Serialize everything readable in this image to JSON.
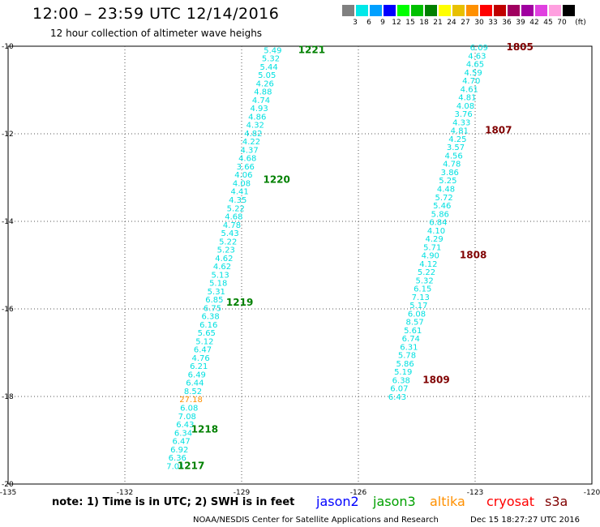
{
  "header": {
    "title": "12:00 – 23:59 UTC 12/14/2016",
    "subtitle": "12 hour collection of altimeter wave heighs"
  },
  "color_scale": {
    "unit": "(ft)",
    "bins": [
      {
        "label": "3",
        "color": "#808080"
      },
      {
        "label": "6",
        "color": "#00e8e8"
      },
      {
        "label": "9",
        "color": "#00a0ff"
      },
      {
        "label": "12",
        "color": "#0000ff"
      },
      {
        "label": "15",
        "color": "#00ff00"
      },
      {
        "label": "18",
        "color": "#00c000"
      },
      {
        "label": "21",
        "color": "#008000"
      },
      {
        "label": "24",
        "color": "#ffff00"
      },
      {
        "label": "27",
        "color": "#e8c000"
      },
      {
        "label": "30",
        "color": "#ff9000"
      },
      {
        "label": "33",
        "color": "#ff0000"
      },
      {
        "label": "36",
        "color": "#c00000"
      },
      {
        "label": "39",
        "color": "#a00060"
      },
      {
        "label": "42",
        "color": "#a000a0"
      },
      {
        "label": "45",
        "color": "#e040e0"
      },
      {
        "label": "70",
        "color": "#ffa0e0"
      },
      {
        "label": "",
        "color": "#000000"
      }
    ]
  },
  "axes": {
    "lon_ticks": [
      "-135",
      "-132",
      "-129",
      "-126",
      "-123",
      "-120"
    ],
    "lat_ticks": [
      "-10",
      "-12",
      "-14",
      "-16",
      "-18",
      "-20"
    ]
  },
  "passes": [
    {
      "sat_color": "#00e0e0",
      "label_color": "#008000",
      "obs": [
        {
          "lon": -128.2,
          "lat": -10.08,
          "v": "5.49"
        },
        {
          "lon": -128.25,
          "lat": -10.27,
          "v": "5.32"
        },
        {
          "lon": -128.3,
          "lat": -10.46,
          "v": "5.44"
        },
        {
          "lon": -128.35,
          "lat": -10.65,
          "v": "5.05"
        },
        {
          "lon": -128.4,
          "lat": -10.84,
          "v": "4.26"
        },
        {
          "lon": -128.45,
          "lat": -11.03,
          "v": "4.88"
        },
        {
          "lon": -128.5,
          "lat": -11.22,
          "v": "4.74"
        },
        {
          "lon": -128.55,
          "lat": -11.41,
          "v": "4.93"
        },
        {
          "lon": -128.6,
          "lat": -11.6,
          "v": "4.86"
        },
        {
          "lon": -128.65,
          "lat": -11.79,
          "v": "4.32"
        },
        {
          "lon": -128.7,
          "lat": -11.98,
          "v": "4.82"
        },
        {
          "lon": -128.75,
          "lat": -12.17,
          "v": "4.22"
        },
        {
          "lon": -128.8,
          "lat": -12.36,
          "v": "4.37"
        },
        {
          "lon": -128.85,
          "lat": -12.55,
          "v": "4.68"
        },
        {
          "lon": -128.9,
          "lat": -12.74,
          "v": "3.66"
        },
        {
          "lon": -128.95,
          "lat": -12.93,
          "v": "4.06"
        },
        {
          "lon": -129.0,
          "lat": -13.12,
          "v": "4.08"
        },
        {
          "lon": -129.05,
          "lat": -13.31,
          "v": "4.41"
        },
        {
          "lon": -129.1,
          "lat": -13.5,
          "v": "4.35"
        },
        {
          "lon": -129.15,
          "lat": -13.69,
          "v": "5.22"
        },
        {
          "lon": -129.2,
          "lat": -13.88,
          "v": "4.68"
        },
        {
          "lon": -129.25,
          "lat": -14.07,
          "v": "4.78"
        },
        {
          "lon": -129.3,
          "lat": -14.26,
          "v": "5.43"
        },
        {
          "lon": -129.35,
          "lat": -14.45,
          "v": "5.22"
        },
        {
          "lon": -129.4,
          "lat": -14.64,
          "v": "5.23"
        },
        {
          "lon": -129.45,
          "lat": -14.83,
          "v": "4.62"
        },
        {
          "lon": -129.5,
          "lat": -15.02,
          "v": "4.62"
        },
        {
          "lon": -129.55,
          "lat": -15.21,
          "v": "5.13"
        },
        {
          "lon": -129.6,
          "lat": -15.4,
          "v": "5.18"
        },
        {
          "lon": -129.65,
          "lat": -15.59,
          "v": "5.31"
        },
        {
          "lon": -129.7,
          "lat": -15.78,
          "v": "6.85"
        },
        {
          "lon": -129.75,
          "lat": -15.97,
          "v": "6.75"
        },
        {
          "lon": -129.8,
          "lat": -16.16,
          "v": "6.38"
        },
        {
          "lon": -129.85,
          "lat": -16.35,
          "v": "6.16"
        },
        {
          "lon": -129.9,
          "lat": -16.54,
          "v": "5.65"
        },
        {
          "lon": -129.95,
          "lat": -16.73,
          "v": "5.12"
        },
        {
          "lon": -130.0,
          "lat": -16.92,
          "v": "6.47"
        },
        {
          "lon": -130.05,
          "lat": -17.11,
          "v": "4.76"
        },
        {
          "lon": -130.1,
          "lat": -17.3,
          "v": "6.21"
        },
        {
          "lon": -130.15,
          "lat": -17.49,
          "v": "6.49"
        },
        {
          "lon": -130.2,
          "lat": -17.68,
          "v": "6.44"
        },
        {
          "lon": -130.25,
          "lat": -17.87,
          "v": "8.52"
        },
        {
          "lon": -130.3,
          "lat": -18.06,
          "v": "27.18",
          "c": "#ff9000"
        },
        {
          "lon": -130.35,
          "lat": -18.25,
          "v": "6.08"
        },
        {
          "lon": -130.4,
          "lat": -18.44,
          "v": "7.08"
        },
        {
          "lon": -130.45,
          "lat": -18.63,
          "v": "6.43"
        },
        {
          "lon": -130.5,
          "lat": -18.82,
          "v": "6.34"
        },
        {
          "lon": -130.55,
          "lat": -19.01,
          "v": "6.47"
        },
        {
          "lon": -130.6,
          "lat": -19.2,
          "v": "6.92"
        },
        {
          "lon": -130.65,
          "lat": -19.39,
          "v": "6.36"
        },
        {
          "lon": -130.7,
          "lat": -19.58,
          "v": "7.01"
        }
      ],
      "times": [
        {
          "lon": -127.2,
          "lat": -10.08,
          "t": "1221"
        },
        {
          "lon": -128.1,
          "lat": -13.05,
          "t": "1220"
        },
        {
          "lon": -129.05,
          "lat": -15.85,
          "t": "1219"
        },
        {
          "lon": -129.95,
          "lat": -18.75,
          "t": "1218"
        },
        {
          "lon": -130.3,
          "lat": -19.58,
          "t": "1217"
        }
      ]
    },
    {
      "sat_color": "#00e0e0",
      "label_color": "#800000",
      "obs": [
        {
          "lon": -122.9,
          "lat": -10.02,
          "v": "6.09"
        },
        {
          "lon": -122.95,
          "lat": -10.21,
          "v": "4.63"
        },
        {
          "lon": -123.0,
          "lat": -10.4,
          "v": "4.65"
        },
        {
          "lon": -123.05,
          "lat": -10.59,
          "v": "4.59"
        },
        {
          "lon": -123.1,
          "lat": -10.78,
          "v": "4.70"
        },
        {
          "lon": -123.15,
          "lat": -10.97,
          "v": "4.61"
        },
        {
          "lon": -123.2,
          "lat": -11.16,
          "v": "4.81"
        },
        {
          "lon": -123.25,
          "lat": -11.35,
          "v": "4.08"
        },
        {
          "lon": -123.3,
          "lat": -11.54,
          "v": "3.76"
        },
        {
          "lon": -123.35,
          "lat": -11.73,
          "v": "4.33"
        },
        {
          "lon": -123.4,
          "lat": -11.92,
          "v": "4.81"
        },
        {
          "lon": -123.45,
          "lat": -12.11,
          "v": "4.25"
        },
        {
          "lon": -123.5,
          "lat": -12.3,
          "v": "3.57"
        },
        {
          "lon": -123.55,
          "lat": -12.49,
          "v": "4.56"
        },
        {
          "lon": -123.6,
          "lat": -12.68,
          "v": "4.78"
        },
        {
          "lon": -123.65,
          "lat": -12.87,
          "v": "3.86"
        },
        {
          "lon": -123.7,
          "lat": -13.06,
          "v": "5.25"
        },
        {
          "lon": -123.75,
          "lat": -13.25,
          "v": "4.48"
        },
        {
          "lon": -123.8,
          "lat": -13.44,
          "v": "5.72"
        },
        {
          "lon": -123.85,
          "lat": -13.63,
          "v": "5.46"
        },
        {
          "lon": -123.9,
          "lat": -13.82,
          "v": "5.86"
        },
        {
          "lon": -123.95,
          "lat": -14.01,
          "v": "6.84"
        },
        {
          "lon": -124.0,
          "lat": -14.2,
          "v": "4.10"
        },
        {
          "lon": -124.05,
          "lat": -14.39,
          "v": "4.29"
        },
        {
          "lon": -124.1,
          "lat": -14.58,
          "v": "5.71"
        },
        {
          "lon": -124.15,
          "lat": -14.77,
          "v": "4.90"
        },
        {
          "lon": -124.2,
          "lat": -14.96,
          "v": "4.12"
        },
        {
          "lon": -124.25,
          "lat": -15.15,
          "v": "5.22"
        },
        {
          "lon": -124.3,
          "lat": -15.34,
          "v": "5.32"
        },
        {
          "lon": -124.35,
          "lat": -15.53,
          "v": "6.15"
        },
        {
          "lon": -124.4,
          "lat": -15.72,
          "v": "7.13"
        },
        {
          "lon": -124.45,
          "lat": -15.91,
          "v": "5.17"
        },
        {
          "lon": -124.5,
          "lat": -16.1,
          "v": "6.08"
        },
        {
          "lon": -124.55,
          "lat": -16.29,
          "v": "8.57"
        },
        {
          "lon": -124.6,
          "lat": -16.48,
          "v": "5.61"
        },
        {
          "lon": -124.65,
          "lat": -16.67,
          "v": "6.74"
        },
        {
          "lon": -124.7,
          "lat": -16.86,
          "v": "6.31"
        },
        {
          "lon": -124.75,
          "lat": -17.05,
          "v": "5.78"
        },
        {
          "lon": -124.8,
          "lat": -17.24,
          "v": "5.86"
        },
        {
          "lon": -124.85,
          "lat": -17.43,
          "v": "5.19"
        },
        {
          "lon": -124.9,
          "lat": -17.62,
          "v": "6.38"
        },
        {
          "lon": -124.95,
          "lat": -17.81,
          "v": "6.07"
        },
        {
          "lon": -125.0,
          "lat": -18.0,
          "v": "6.43"
        }
      ],
      "times": [
        {
          "lon": -121.85,
          "lat": -10.02,
          "t": "1805"
        },
        {
          "lon": -122.4,
          "lat": -11.92,
          "t": "1807"
        },
        {
          "lon": -123.05,
          "lat": -14.77,
          "t": "1808"
        },
        {
          "lon": -124.0,
          "lat": -17.62,
          "t": "1809"
        }
      ]
    }
  ],
  "footer": {
    "note": "note: 1) Time is in UTC; 2) SWH is in feet",
    "satellites": [
      {
        "name": "jason2",
        "color": "#0000ff"
      },
      {
        "name": "jason3",
        "color": "#00a000"
      },
      {
        "name": "altika",
        "color": "#ff9000"
      },
      {
        "name": "cryosat",
        "color": "#ff0000"
      },
      {
        "name": "s3a",
        "color": "#800000"
      }
    ],
    "credit": "NOAA/NESDIS Center for Satellite Applications and Research",
    "timestamp": "Dec 15 18:27:27 UTC 2016"
  }
}
